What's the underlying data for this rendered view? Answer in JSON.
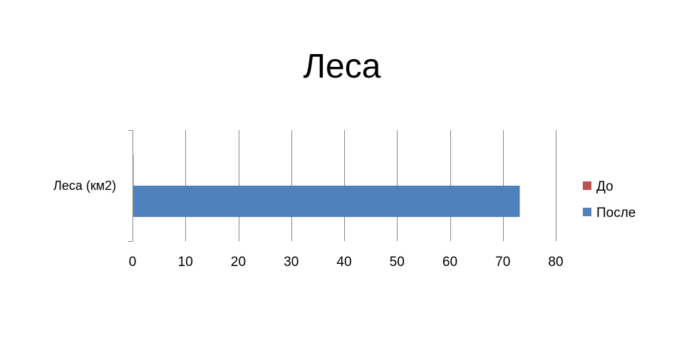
{
  "chart_data": {
    "type": "bar",
    "orientation": "horizontal",
    "title": "Леса",
    "categories": [
      "Леса (км2)"
    ],
    "series": [
      {
        "name": "До",
        "values": [
          0.2
        ],
        "color": "#C0504D"
      },
      {
        "name": "После",
        "values": [
          73.2
        ],
        "color": "#4F81BD"
      }
    ],
    "xlim": [
      0,
      80
    ],
    "x_ticks": [
      0,
      10,
      20,
      30,
      40,
      50,
      60,
      70,
      80
    ],
    "grid": "vertical",
    "legend_position": "right",
    "xlabel": "",
    "ylabel": ""
  }
}
